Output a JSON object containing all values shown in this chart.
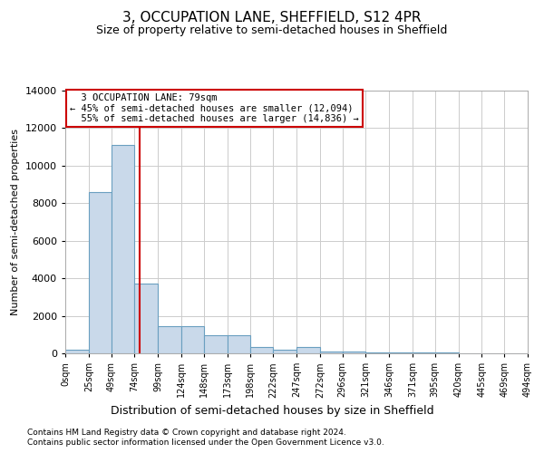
{
  "title": "3, OCCUPATION LANE, SHEFFIELD, S12 4PR",
  "subtitle": "Size of property relative to semi-detached houses in Sheffield",
  "xlabel": "Distribution of semi-detached houses by size in Sheffield",
  "ylabel": "Number of semi-detached properties",
  "property_size": 79,
  "property_label": "3 OCCUPATION LANE: 79sqm",
  "pct_smaller": 45,
  "pct_larger": 55,
  "n_smaller": 12094,
  "n_larger": 14836,
  "bar_color": "#c9d9ea",
  "bar_edge_color": "#6a9fc0",
  "vline_color": "#cc0000",
  "grid_color": "#cccccc",
  "bin_edges": [
    0,
    25,
    49,
    74,
    99,
    124,
    148,
    173,
    198,
    222,
    247,
    272,
    296,
    321,
    346,
    371,
    395,
    420,
    445,
    469,
    494
  ],
  "bin_heights": [
    200,
    8600,
    11100,
    3700,
    1450,
    1450,
    950,
    950,
    350,
    200,
    350,
    100,
    80,
    60,
    50,
    40,
    30,
    20,
    10,
    5
  ],
  "tick_labels": [
    "0sqm",
    "25sqm",
    "49sqm",
    "74sqm",
    "99sqm",
    "124sqm",
    "148sqm",
    "173sqm",
    "198sqm",
    "222sqm",
    "247sqm",
    "272sqm",
    "296sqm",
    "321sqm",
    "346sqm",
    "371sqm",
    "395sqm",
    "420sqm",
    "445sqm",
    "469sqm",
    "494sqm"
  ],
  "ylim": [
    0,
    14000
  ],
  "yticks": [
    0,
    2000,
    4000,
    6000,
    8000,
    10000,
    12000,
    14000
  ],
  "footnote1": "Contains HM Land Registry data © Crown copyright and database right 2024.",
  "footnote2": "Contains public sector information licensed under the Open Government Licence v3.0.",
  "background_color": "#ffffff",
  "fig_width": 6.0,
  "fig_height": 5.0,
  "dpi": 100
}
